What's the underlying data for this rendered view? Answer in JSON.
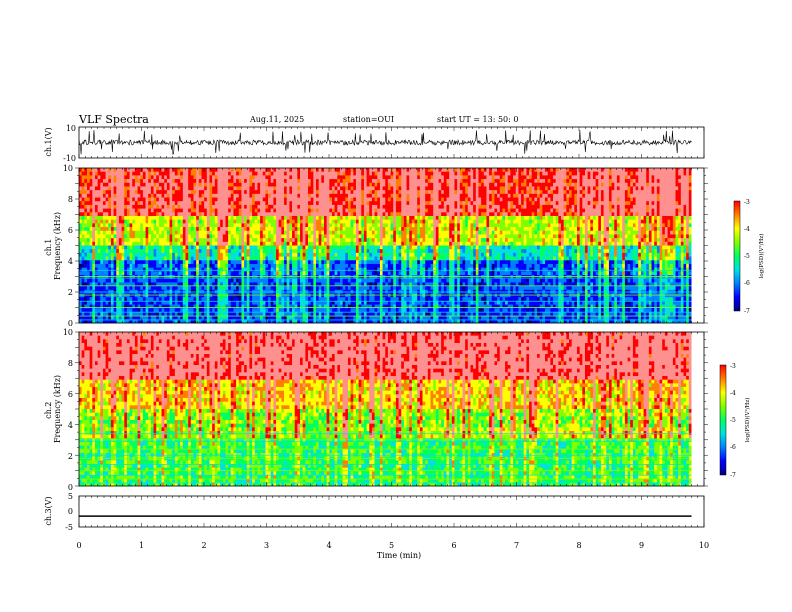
{
  "header": {
    "title": "VLF Spectra",
    "date": "Aug.11, 2025",
    "station": "station=OUI",
    "start": "start  UT =   13: 50: 0"
  },
  "colors": {
    "colormap": [
      "#2b0040",
      "#000080",
      "#0000ff",
      "#0080ff",
      "#00e0e0",
      "#00ff60",
      "#80ff00",
      "#ffff00",
      "#ff8000",
      "#ff0000",
      "#ff9090",
      "#ffe0e0"
    ],
    "frame": "#000000",
    "waveform": "#000000"
  },
  "chart_data": [
    {
      "type": "line",
      "panel": "ch1-waveform",
      "ylabel": "ch.1(V)",
      "ylim": [
        -10,
        10
      ],
      "y_ticklabels": [
        "10",
        "-10"
      ],
      "xlim": [
        0,
        10
      ],
      "trace": "noisy waveform centred near 0 V, occasional spikes to about ±8 V, ending at about 9.8 min"
    },
    {
      "type": "heatmap",
      "panel": "ch1-spectrogram",
      "ylabel": "ch.1\nFrequency (kHz)",
      "ylim": [
        0,
        10
      ],
      "y_ticklabels": [
        "0",
        "2",
        "4",
        "6",
        "8",
        "10"
      ],
      "xlim": [
        0,
        10
      ],
      "data_end_min": 9.8,
      "colorbar": {
        "label": "log(PSD)(V²/Hz)",
        "range": [
          -7,
          -3
        ],
        "ticklabels": [
          "-3",
          "-4",
          "-5",
          "-6",
          "-7"
        ]
      },
      "description": "high PSD (-3 to -4) above ~6 kHz, low PSD (-6 to -7) below ~4 kHz with horizontal interference lines near 0.3, 0.6, 1, 1.4, 2, 2.4, 3, 3.4 kHz"
    },
    {
      "type": "heatmap",
      "panel": "ch2-spectrogram",
      "ylabel": "ch.2\nFrequency (kHz)",
      "ylim": [
        0,
        10
      ],
      "y_ticklabels": [
        "0",
        "2",
        "4",
        "6",
        "8",
        "10"
      ],
      "xlim": [
        0,
        10
      ],
      "data_end_min": 9.8,
      "colorbar": {
        "label": "log(PSD)(V²/Hz)",
        "range": [
          -7,
          -3
        ],
        "ticklabels": [
          "-3",
          "-4",
          "-5",
          "-6",
          "-7"
        ]
      },
      "description": "high PSD above ~6 kHz, mid PSD (-5) band 3-4 kHz after ~5.5 min, horizontal interference lines below 4 kHz"
    },
    {
      "type": "line",
      "panel": "ch3-waveform",
      "ylabel": "ch.3(V)",
      "ylim": [
        -5,
        5
      ],
      "y_ticklabels": [
        "5",
        "0",
        "-5"
      ],
      "xlim": [
        0,
        10
      ],
      "x": [
        0,
        9.8
      ],
      "y": [
        -1.5,
        -1.5
      ]
    }
  ],
  "xaxis": {
    "label": "Time  (min)",
    "ticklabels": [
      "0",
      "1",
      "2",
      "3",
      "4",
      "5",
      "6",
      "7",
      "8",
      "9",
      "10"
    ]
  }
}
